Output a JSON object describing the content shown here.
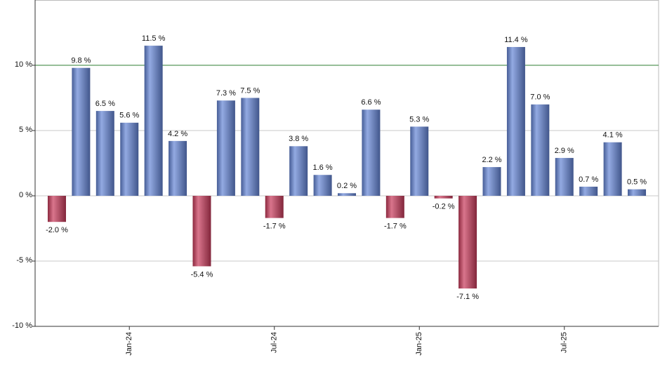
{
  "chart_data": {
    "type": "bar",
    "categories": [
      null,
      null,
      null,
      "Jan-24",
      null,
      null,
      null,
      null,
      null,
      "Jul-24",
      null,
      null,
      null,
      null,
      null,
      "Jan-25",
      null,
      null,
      null,
      null,
      null,
      "Jul-25",
      null,
      null,
      null
    ],
    "values": [
      -2.0,
      9.8,
      6.5,
      5.6,
      11.5,
      4.2,
      -5.4,
      7.3,
      7.5,
      -1.7,
      3.8,
      1.6,
      0.2,
      6.6,
      -1.7,
      5.3,
      -0.2,
      -7.1,
      2.2,
      11.4,
      7.0,
      2.9,
      0.7,
      4.1,
      0.5
    ],
    "value_labels": [
      "-2.0 %",
      "9.8 %",
      "6.5 %",
      "5.6 %",
      "11.5 %",
      "4.2 %",
      "-5.4 %",
      "7.3 %",
      "7.5 %",
      "-1.7 %",
      "3.8 %",
      "1.6 %",
      "0.2 %",
      "6.6 %",
      "-1.7 %",
      "5.3 %",
      "-0.2 %",
      "-7.1 %",
      "2.2 %",
      "11.4 %",
      "7.0 %",
      "2.9 %",
      "0.7 %",
      "4.1 %",
      "0.5 %"
    ],
    "positive_color": "#6485d6",
    "negative_color": "#c83a5a",
    "ylim": [
      -10,
      15
    ],
    "yticks": [
      {
        "value": -10,
        "label": "-10 %"
      },
      {
        "value": -5,
        "label": "-5 %"
      },
      {
        "value": 0,
        "label": "0 %"
      },
      {
        "value": 5,
        "label": "5 %"
      },
      {
        "value": 10,
        "label": "10 %"
      }
    ],
    "grid": true,
    "reference_line": 10,
    "reference_color": "#2e7d32"
  }
}
